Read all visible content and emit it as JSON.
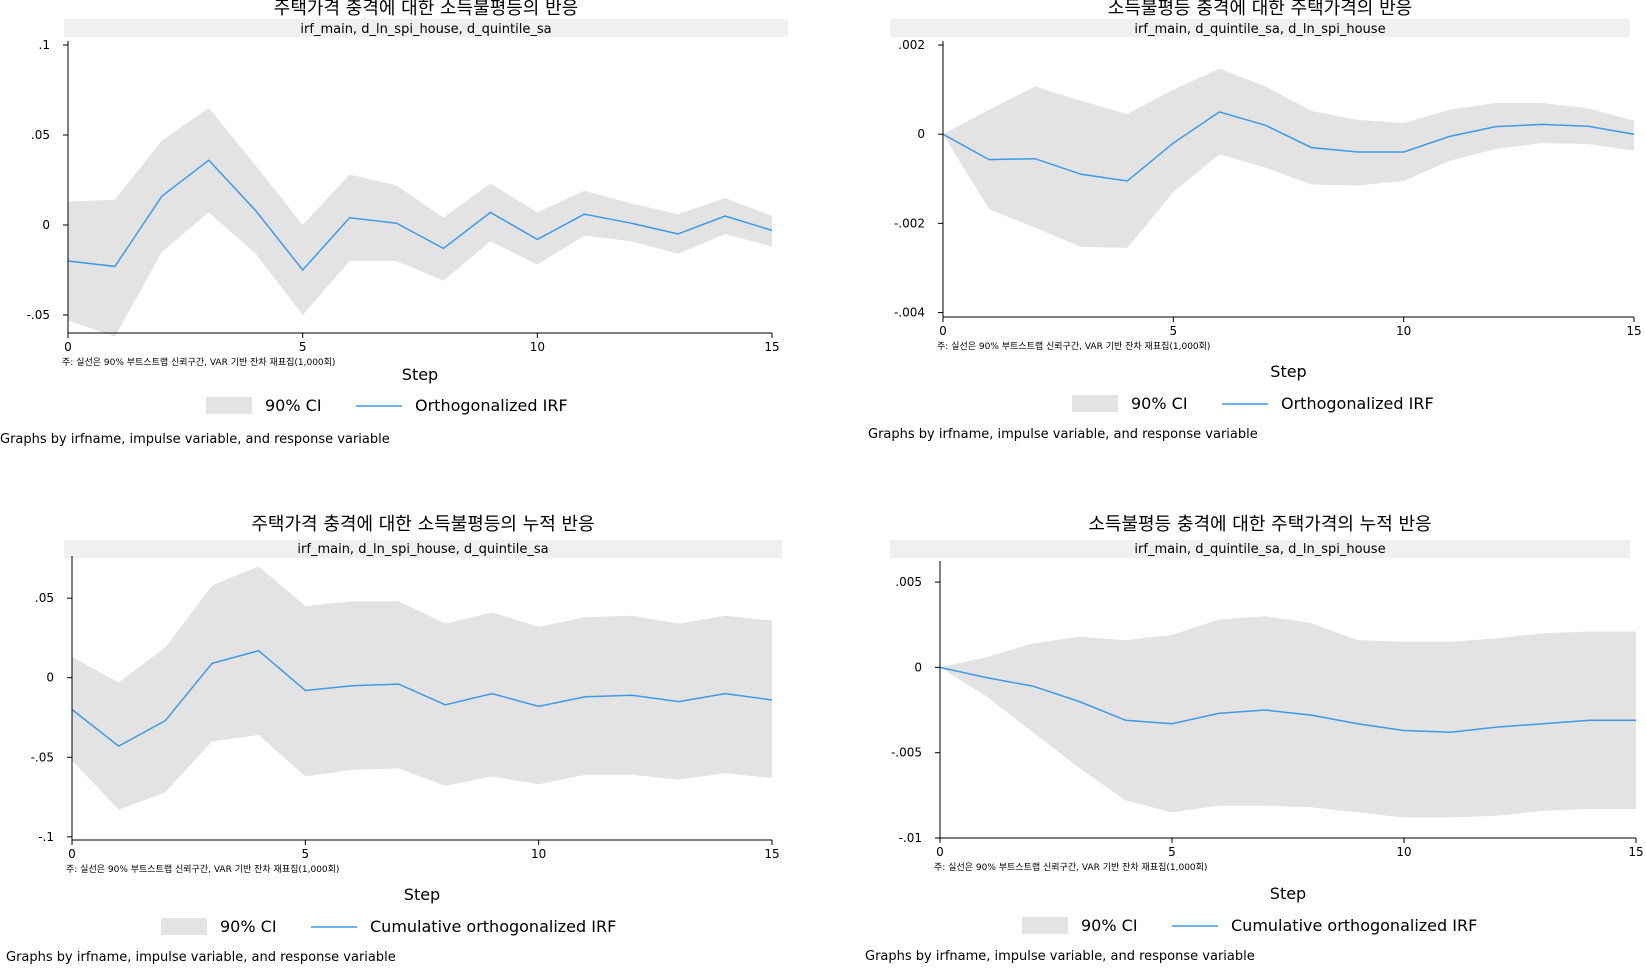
{
  "colors": {
    "ci_fill": "#e3e3e3",
    "irf_line": "#3d9ae8",
    "subtitle_bg": "#f0f0f0",
    "axis": "#000000"
  },
  "note": "주: 실선은 90% 부트스트랩 신뢰구간, VAR 기반 잔차 재표집(1,000회)",
  "xlabel": "Step",
  "graphs_by": "Graphs by irfname, impulse variable, and response variable",
  "chart_data": [
    {
      "type": "area",
      "title": "주택가격 충격에 대한 소득불평등의 반응",
      "subtitle": "irf_main, d_ln_spi_house, d_quintile_sa",
      "xlabel": "Step",
      "xlim": [
        0,
        15
      ],
      "xticks": [
        0,
        5,
        10,
        15
      ],
      "ylim": [
        -0.06,
        0.1
      ],
      "yticks": [
        0.1,
        0.05,
        0,
        -0.05
      ],
      "ytick_labels": [
        ".1",
        ".05",
        "0",
        "-.05"
      ],
      "grid": false,
      "legend_position": "bottom",
      "legend": [
        "90% CI",
        "Orthogonalized IRF"
      ],
      "x": [
        0,
        1,
        2,
        3,
        4,
        5,
        6,
        7,
        8,
        9,
        10,
        11,
        12,
        13,
        14,
        15
      ],
      "irf": [
        -0.02,
        -0.023,
        0.016,
        0.036,
        0.008,
        -0.025,
        0.004,
        0.001,
        -0.013,
        0.007,
        -0.008,
        0.006,
        0.001,
        -0.005,
        0.005,
        -0.003
      ],
      "ci_upper": [
        0.013,
        0.014,
        0.047,
        0.065,
        0.033,
        0,
        0.028,
        0.022,
        0.004,
        0.023,
        0.007,
        0.019,
        0.012,
        0.006,
        0.015,
        0.005
      ],
      "ci_lower": [
        -0.053,
        -0.062,
        -0.015,
        0.007,
        -0.016,
        -0.05,
        -0.02,
        -0.02,
        -0.031,
        -0.009,
        -0.022,
        -0.006,
        -0.009,
        -0.016,
        -0.005,
        -0.012
      ]
    },
    {
      "type": "area",
      "title": "소득불평등 충격에 대한 주택가격의 반응",
      "subtitle": "irf_main, d_quintile_sa, d_ln_spi_house",
      "xlabel": "Step",
      "xlim": [
        0,
        15
      ],
      "xticks": [
        0,
        5,
        10,
        15
      ],
      "ylim": [
        -0.0041,
        0.002
      ],
      "yticks": [
        0.002,
        0,
        -0.002,
        -0.004
      ],
      "ytick_labels": [
        ".002",
        "0",
        "-.002",
        "-.004"
      ],
      "grid": false,
      "legend_position": "bottom",
      "legend": [
        "90% CI",
        "Orthogonalized IRF"
      ],
      "x": [
        0,
        1,
        2,
        3,
        4,
        5,
        6,
        7,
        8,
        9,
        10,
        11,
        12,
        13,
        14,
        15
      ],
      "irf": [
        0,
        -0.00057,
        -0.00055,
        -0.0009,
        -0.00105,
        -0.0002,
        0.0005,
        0.0002,
        -0.0003,
        -0.0004,
        -0.0004,
        -5e-05,
        0.00017,
        0.00022,
        0.00018,
        0
      ],
      "ci_upper": [
        0,
        0.00055,
        0.00107,
        0.00075,
        0.00045,
        0.001,
        0.00147,
        0.00107,
        0.00052,
        0.00032,
        0.00025,
        0.00055,
        0.0007,
        0.0007,
        0.00058,
        0.0003
      ],
      "ci_lower": [
        0,
        -0.00168,
        -0.0021,
        -0.00253,
        -0.00255,
        -0.0013,
        -0.00045,
        -0.00075,
        -0.00113,
        -0.00115,
        -0.00105,
        -0.0006,
        -0.00033,
        -0.0002,
        -0.00022,
        -0.00037
      ]
    },
    {
      "type": "area",
      "title": "주택가격 충격에 대한 소득불평등의 누적 반응",
      "subtitle": "irf_main, d_ln_spi_house, d_quintile_sa",
      "xlabel": "Step",
      "xlim": [
        0,
        15
      ],
      "xticks": [
        0,
        5,
        10,
        15
      ],
      "ylim": [
        -0.102,
        0.074
      ],
      "yticks": [
        0.05,
        0,
        -0.05,
        -0.1
      ],
      "ytick_labels": [
        ".05",
        "0",
        "-.05",
        "-.1"
      ],
      "grid": false,
      "legend_position": "bottom",
      "legend": [
        "90% CI",
        "Cumulative orthogonalized IRF"
      ],
      "x": [
        0,
        1,
        2,
        3,
        4,
        5,
        6,
        7,
        8,
        9,
        10,
        11,
        12,
        13,
        14,
        15
      ],
      "irf": [
        -0.02,
        -0.043,
        -0.027,
        0.009,
        0.017,
        -0.008,
        -0.005,
        -0.004,
        -0.017,
        -0.01,
        -0.018,
        -0.012,
        -0.011,
        -0.015,
        -0.01,
        -0.014
      ],
      "ci_upper": [
        0.013,
        -0.003,
        0.019,
        0.058,
        0.07,
        0.045,
        0.048,
        0.048,
        0.034,
        0.041,
        0.032,
        0.038,
        0.039,
        0.034,
        0.039,
        0.036
      ],
      "ci_lower": [
        -0.052,
        -0.083,
        -0.072,
        -0.04,
        -0.036,
        -0.062,
        -0.058,
        -0.057,
        -0.068,
        -0.062,
        -0.067,
        -0.061,
        -0.061,
        -0.064,
        -0.06,
        -0.063
      ]
    },
    {
      "type": "area",
      "title": "소득불평등 충격에 대한 주택가격의 누적 반응",
      "subtitle": "irf_main, d_quintile_sa, d_ln_spi_house",
      "xlabel": "Step",
      "xlim": [
        0,
        15
      ],
      "xticks": [
        0,
        5,
        10,
        15
      ],
      "ylim": [
        -0.01,
        0.006
      ],
      "yticks": [
        0.005,
        0,
        -0.005,
        -0.01
      ],
      "ytick_labels": [
        ".005",
        "0",
        "-.005",
        "-.01"
      ],
      "grid": false,
      "legend_position": "bottom",
      "legend": [
        "90% CI",
        "Cumulative orthogonalized IRF"
      ],
      "x": [
        0,
        1,
        2,
        3,
        4,
        5,
        6,
        7,
        8,
        9,
        10,
        11,
        12,
        13,
        14,
        15
      ],
      "irf": [
        0,
        -0.0006,
        -0.0011,
        -0.002,
        -0.0031,
        -0.0033,
        -0.0027,
        -0.0025,
        -0.0028,
        -0.0033,
        -0.0037,
        -0.0038,
        -0.0035,
        -0.0033,
        -0.0031,
        -0.0031
      ],
      "ci_upper": [
        0,
        0.0006,
        0.0014,
        0.0018,
        0.0016,
        0.0019,
        0.0028,
        0.003,
        0.0026,
        0.0016,
        0.0015,
        0.0015,
        0.0017,
        0.002,
        0.0021,
        0.0021
      ],
      "ci_lower": [
        0,
        -0.0017,
        -0.0038,
        -0.0059,
        -0.0078,
        -0.0085,
        -0.0081,
        -0.0081,
        -0.0082,
        -0.0085,
        -0.0088,
        -0.0088,
        -0.0087,
        -0.0084,
        -0.0083,
        -0.0083
      ]
    }
  ]
}
